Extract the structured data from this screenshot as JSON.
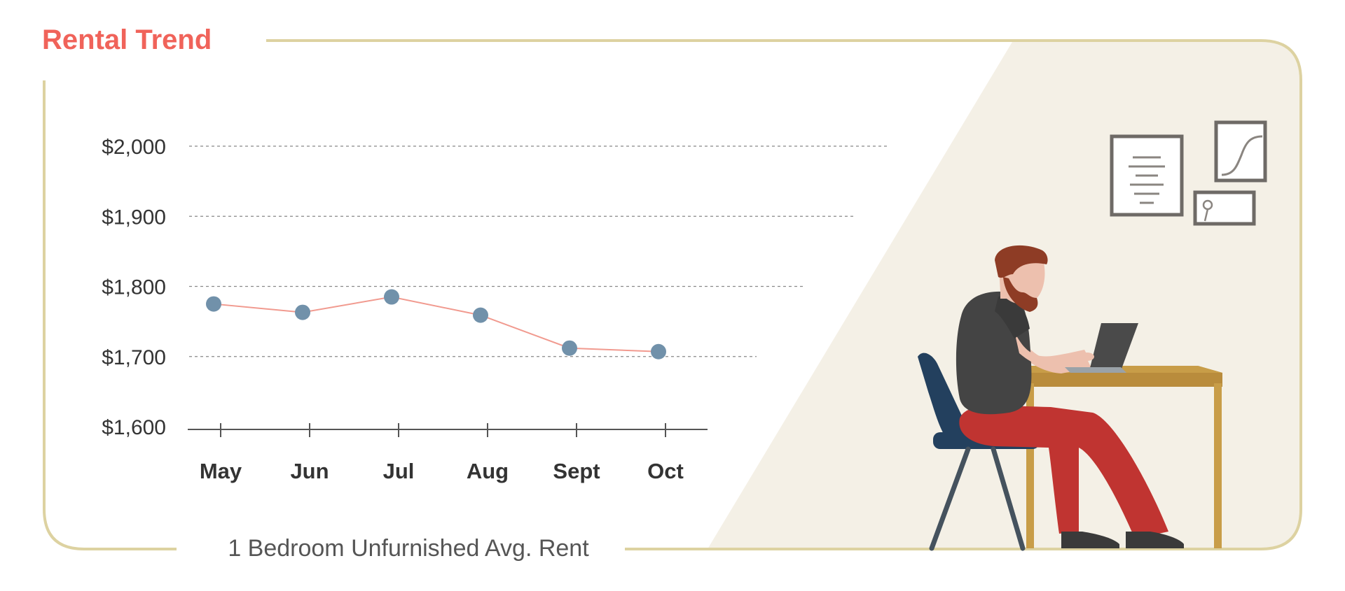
{
  "colors": {
    "title": "#F0635A",
    "frame": "#DDD2A1",
    "panel": "#F4F0E6",
    "line": "#F19A8F",
    "marker": "#7191AA",
    "axis": "#555555",
    "grid": "#888888",
    "text": "#333333",
    "caption": "#555555"
  },
  "chart_data": {
    "type": "line",
    "title": "Rental Trend",
    "caption": "1 Bedroom Unfurnished Avg. Rent",
    "categories": [
      "May",
      "Jun",
      "Jul",
      "Aug",
      "Sept",
      "Oct"
    ],
    "series": [
      {
        "values": [
          1775,
          1763,
          1785,
          1759,
          1712,
          1707
        ]
      }
    ],
    "y_ticks": [
      "$1,600",
      "$1,700",
      "$1,800",
      "$1,900",
      "$2,000"
    ],
    "y_tick_values": [
      1600,
      1700,
      1800,
      1900,
      2000
    ],
    "ylim": [
      1600,
      2000
    ],
    "grid": true,
    "legend": "none"
  },
  "illustration": {
    "subject": "person-typing-on-laptop-at-desk",
    "icons": [
      "document-frame-icon",
      "sigmoid-chart-frame-icon",
      "flower-frame-icon"
    ]
  }
}
